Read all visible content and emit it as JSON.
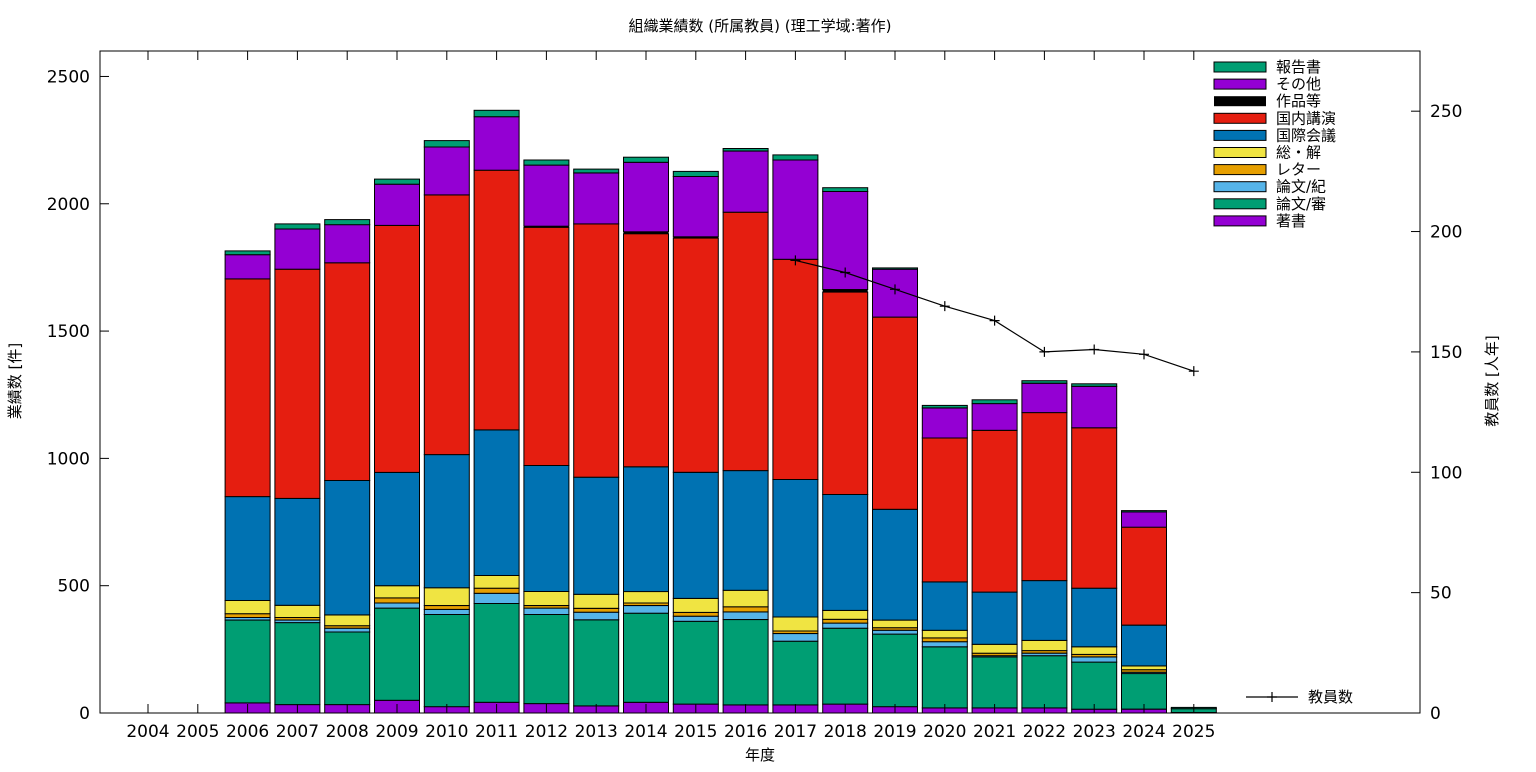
{
  "chart_data": {
    "type": "bar",
    "stacked": true,
    "title": "組織業績数 (所属教員) (理工学域:著作)",
    "xlabel": "年度",
    "ylabel": "業績数 [件]",
    "y2label": "教員数 [人年]",
    "categories": [
      "2004",
      "2005",
      "2006",
      "2007",
      "2008",
      "2009",
      "2010",
      "2011",
      "2012",
      "2013",
      "2014",
      "2015",
      "2016",
      "2017",
      "2018",
      "2019",
      "2020",
      "2021",
      "2022",
      "2023",
      "2024",
      "2025"
    ],
    "ylim": [
      0,
      2600
    ],
    "y2lim": [
      0,
      275
    ],
    "yticks": [
      0,
      500,
      1000,
      1500,
      2000,
      2500
    ],
    "y2ticks": [
      0,
      50,
      100,
      150,
      200,
      250
    ],
    "grid": false,
    "legend_position": "top-right",
    "series": [
      {
        "name": "著書",
        "color": "#9400d3",
        "values": [
          0,
          0,
          40,
          33,
          33,
          50,
          25,
          42,
          37,
          28,
          42,
          35,
          32,
          32,
          35,
          25,
          20,
          20,
          20,
          15,
          15,
          2
        ]
      },
      {
        "name": "論文/審",
        "color": "#009e73",
        "values": [
          0,
          0,
          325,
          322,
          285,
          362,
          362,
          388,
          350,
          338,
          350,
          325,
          335,
          250,
          298,
          285,
          240,
          200,
          205,
          185,
          140,
          15
        ]
      },
      {
        "name": "論文/紀",
        "color": "#56b4e9",
        "values": [
          0,
          0,
          10,
          10,
          15,
          20,
          20,
          40,
          25,
          30,
          30,
          20,
          30,
          30,
          20,
          15,
          20,
          5,
          10,
          20,
          5,
          0
        ]
      },
      {
        "name": "レター",
        "color": "#e69f00",
        "values": [
          0,
          0,
          15,
          10,
          10,
          20,
          15,
          20,
          10,
          15,
          10,
          15,
          20,
          10,
          15,
          10,
          15,
          10,
          10,
          10,
          10,
          0
        ]
      },
      {
        "name": "総・解",
        "color": "#f0e442",
        "values": [
          0,
          0,
          52,
          48,
          42,
          48,
          70,
          50,
          55,
          55,
          45,
          55,
          65,
          55,
          35,
          30,
          30,
          35,
          40,
          30,
          15,
          0
        ]
      },
      {
        "name": "国際会議",
        "color": "#0072b2",
        "values": [
          0,
          0,
          408,
          420,
          528,
          445,
          523,
          572,
          495,
          460,
          490,
          495,
          470,
          540,
          455,
          435,
          190,
          205,
          235,
          230,
          160,
          0
        ]
      },
      {
        "name": "国内講演",
        "color": "#e51e10",
        "values": [
          0,
          0,
          855,
          900,
          855,
          970,
          1020,
          1020,
          935,
          995,
          915,
          920,
          1015,
          865,
          795,
          755,
          565,
          635,
          660,
          630,
          385,
          0
        ]
      },
      {
        "name": "作品等",
        "color": "#000000",
        "values": [
          0,
          0,
          0,
          0,
          0,
          0,
          0,
          0,
          5,
          0,
          8,
          5,
          0,
          0,
          10,
          0,
          0,
          0,
          0,
          0,
          0,
          0
        ]
      },
      {
        "name": "その他",
        "color": "#9400d3",
        "values": [
          0,
          0,
          95,
          158,
          150,
          162,
          188,
          210,
          240,
          200,
          273,
          237,
          240,
          390,
          385,
          188,
          118,
          105,
          115,
          163,
          60,
          0
        ]
      },
      {
        "name": "報告書",
        "color": "#009e73",
        "values": [
          0,
          0,
          15,
          20,
          20,
          20,
          25,
          25,
          20,
          15,
          20,
          20,
          10,
          20,
          15,
          5,
          10,
          15,
          10,
          10,
          5,
          5
        ]
      }
    ],
    "line_series": {
      "name": "教員数",
      "axis": "y2",
      "color": "#000000",
      "x": [
        "2017",
        "2018",
        "2019",
        "2020",
        "2021",
        "2022",
        "2023",
        "2024",
        "2025"
      ],
      "values": [
        188,
        183,
        176,
        169,
        163,
        150,
        151,
        149,
        142
      ]
    }
  }
}
